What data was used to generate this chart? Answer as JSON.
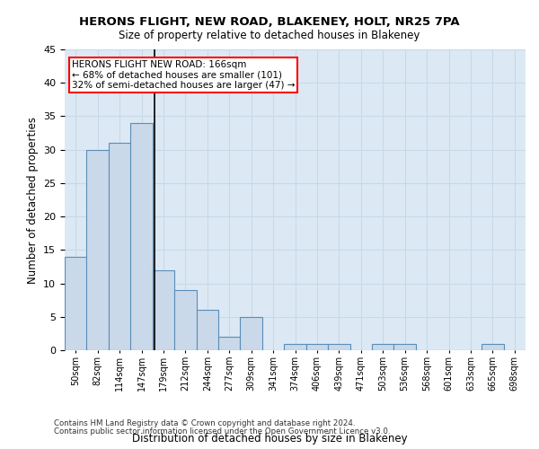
{
  "title1": "HERONS FLIGHT, NEW ROAD, BLAKENEY, HOLT, NR25 7PA",
  "title2": "Size of property relative to detached houses in Blakeney",
  "xlabel": "Distribution of detached houses by size in Blakeney",
  "ylabel": "Number of detached properties",
  "footnote1": "Contains HM Land Registry data © Crown copyright and database right 2024.",
  "footnote2": "Contains public sector information licensed under the Open Government Licence v3.0.",
  "annotation_line1": "HERONS FLIGHT NEW ROAD: 166sqm",
  "annotation_line2": "← 68% of detached houses are smaller (101)",
  "annotation_line3": "32% of semi-detached houses are larger (47) →",
  "bar_labels": [
    "50sqm",
    "82sqm",
    "114sqm",
    "147sqm",
    "179sqm",
    "212sqm",
    "244sqm",
    "277sqm",
    "309sqm",
    "341sqm",
    "374sqm",
    "406sqm",
    "439sqm",
    "471sqm",
    "503sqm",
    "536sqm",
    "568sqm",
    "601sqm",
    "633sqm",
    "665sqm",
    "698sqm"
  ],
  "bar_values": [
    14,
    30,
    31,
    34,
    12,
    9,
    6,
    2,
    5,
    0,
    1,
    1,
    1,
    0,
    1,
    1,
    0,
    0,
    0,
    1,
    0
  ],
  "bar_color": "#c9d9ea",
  "bar_edge_color": "#5b8db8",
  "property_line_color": "black",
  "annotation_box_color": "white",
  "annotation_box_edgecolor": "red",
  "ylim": [
    0,
    45
  ],
  "yticks": [
    0,
    5,
    10,
    15,
    20,
    25,
    30,
    35,
    40,
    45
  ],
  "grid_color": "#c8d8e8",
  "bg_color": "#dce9f5"
}
